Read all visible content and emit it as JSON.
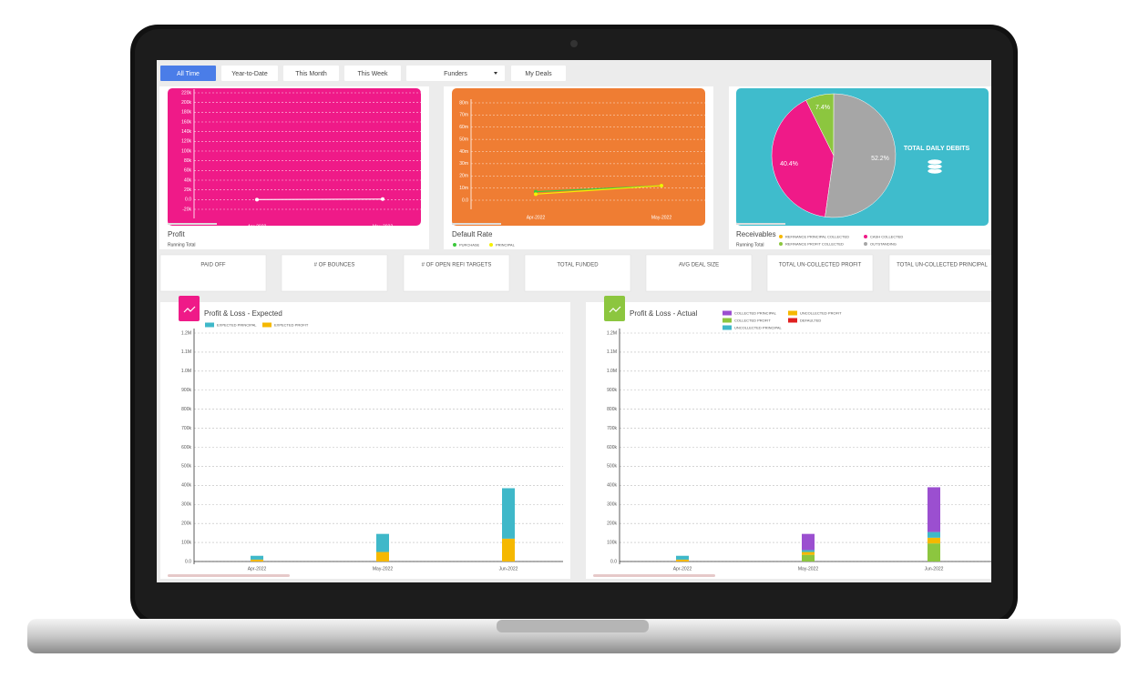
{
  "toolbar": {
    "tabs": [
      "All Time",
      "Year-to-Date",
      "This Month",
      "This Week",
      "Funders",
      "My Deals"
    ]
  },
  "profit_chart": {
    "type": "line",
    "title": "Profit",
    "subtitle": "Running Total",
    "color": "#ffffff",
    "categories": [
      "Apr-2022",
      "May-2022"
    ],
    "values": [
      0,
      1000
    ],
    "ylim": [
      -20000,
      220000
    ],
    "yticks": [
      {
        "value": 220000,
        "label": "220k"
      },
      {
        "value": 200000,
        "label": "200k"
      },
      {
        "value": 180000,
        "label": "180k"
      },
      {
        "value": 160000,
        "label": "160k"
      },
      {
        "value": 140000,
        "label": "140k"
      },
      {
        "value": 120000,
        "label": "120k"
      },
      {
        "value": 100000,
        "label": "100k"
      },
      {
        "value": 80000,
        "label": "80k"
      },
      {
        "value": 60000,
        "label": "60k"
      },
      {
        "value": 40000,
        "label": "40k"
      },
      {
        "value": 20000,
        "label": "20k"
      },
      {
        "value": 0,
        "label": "0.0"
      },
      {
        "value": -20000,
        "label": "-20k"
      }
    ],
    "grid": true
  },
  "default_rate_chart": {
    "type": "line",
    "title": "Default Rate",
    "categories": [
      "Apr-2022",
      "May-2022"
    ],
    "series": [
      {
        "name": "PURCHASE",
        "color": "#3cc83c",
        "values": [
          0.007,
          0.012
        ]
      },
      {
        "name": "PRINCIPAL",
        "color": "#f5f000",
        "values": [
          0.005,
          0.012
        ]
      }
    ],
    "ylim": [
      0,
      0.08
    ],
    "yticks": [
      {
        "value": 0.08,
        "label": "80m"
      },
      {
        "value": 0.07,
        "label": "70m"
      },
      {
        "value": 0.06,
        "label": "60m"
      },
      {
        "value": 0.05,
        "label": "50m"
      },
      {
        "value": 0.04,
        "label": "40m"
      },
      {
        "value": 0.03,
        "label": "30m"
      },
      {
        "value": 0.02,
        "label": "20m"
      },
      {
        "value": 0.01,
        "label": "10m"
      },
      {
        "value": 0,
        "label": "0.0"
      }
    ],
    "grid": true
  },
  "receivables_chart": {
    "type": "pie",
    "title": "Receivables",
    "subtitle": "Running Total",
    "center_label": "TOTAL DAILY DEBITS",
    "categories": [
      "REFINANCE PRINCIPAL COLLECTED",
      "CASH COLLECTED",
      "REFINANCE PROFIT COLLECTED",
      "OUTSTANDING"
    ],
    "colors": [
      "#f5b800",
      "#ef1a88",
      "#8cc63f",
      "#a6a6a6"
    ],
    "values": [
      0,
      40.4,
      7.4,
      52.2
    ],
    "value_labels": [
      null,
      "40.4%",
      "7.4%",
      "52.2%"
    ]
  },
  "kpis": [
    "PAID OFF",
    "# OF BOUNCES",
    "# OF OPEN REFI TARGETS",
    "TOTAL FUNDED",
    "AVG DEAL SIZE",
    "TOTAL UN-COLLECTED PROFIT",
    "TOTAL UN-COLLECTED PRINCIPAL"
  ],
  "pl_expected_chart": {
    "type": "bar",
    "stacked": true,
    "title": "Profit & Loss - Expected",
    "categories": [
      "Apr-2022",
      "May-2022",
      "Jun-2022"
    ],
    "series": [
      {
        "name": "EXPECTED PRINCIPAL",
        "color": "#3fb8c9",
        "values": [
          20000,
          95000,
          265000
        ]
      },
      {
        "name": "EXPECTED PROFIT",
        "color": "#f5b800",
        "values": [
          10000,
          50000,
          120000
        ]
      }
    ],
    "ylim": [
      0,
      1200000
    ],
    "yticks": [
      {
        "value": 1200000,
        "label": "1.2M"
      },
      {
        "value": 1100000,
        "label": "1.1M"
      },
      {
        "value": 1000000,
        "label": "1.0M"
      },
      {
        "value": 900000,
        "label": "900k"
      },
      {
        "value": 800000,
        "label": "800k"
      },
      {
        "value": 700000,
        "label": "700k"
      },
      {
        "value": 600000,
        "label": "600k"
      },
      {
        "value": 500000,
        "label": "500k"
      },
      {
        "value": 400000,
        "label": "400k"
      },
      {
        "value": 300000,
        "label": "300k"
      },
      {
        "value": 200000,
        "label": "200k"
      },
      {
        "value": 100000,
        "label": "100k"
      },
      {
        "value": 0,
        "label": "0.0"
      }
    ],
    "grid": true
  },
  "pl_actual_chart": {
    "type": "bar",
    "stacked": true,
    "title": "Profit & Loss - Actual",
    "categories": [
      "Apr-2022",
      "May-2022",
      "Jun-2022"
    ],
    "series": [
      {
        "name": "COLLECTED PRINCIPAL",
        "color": "#9b4fd0",
        "values": [
          0,
          85000,
          235000
        ]
      },
      {
        "name": "UNCOLLECTED PROFIT",
        "color": "#f5b800",
        "values": [
          10000,
          15000,
          30000
        ]
      },
      {
        "name": "COLLECTED PROFIT",
        "color": "#8cc63f",
        "values": [
          0,
          35000,
          95000
        ]
      },
      {
        "name": "DEFAULTED",
        "color": "#e02020",
        "values": [
          0,
          0,
          0
        ]
      },
      {
        "name": "UNCOLLECTED PRINCIPAL",
        "color": "#3fb8c9",
        "values": [
          20000,
          10000,
          30000
        ]
      }
    ],
    "ylim": [
      0,
      1200000
    ],
    "yticks": [
      {
        "value": 1200000,
        "label": "1.2M"
      },
      {
        "value": 1100000,
        "label": "1.1M"
      },
      {
        "value": 1000000,
        "label": "1.0M"
      },
      {
        "value": 900000,
        "label": "900k"
      },
      {
        "value": 800000,
        "label": "800k"
      },
      {
        "value": 700000,
        "label": "700k"
      },
      {
        "value": 600000,
        "label": "600k"
      },
      {
        "value": 500000,
        "label": "500k"
      },
      {
        "value": 400000,
        "label": "400k"
      },
      {
        "value": 300000,
        "label": "300k"
      },
      {
        "value": 200000,
        "label": "200k"
      },
      {
        "value": 100000,
        "label": "100k"
      },
      {
        "value": 0,
        "label": "0.0"
      }
    ],
    "grid": true
  }
}
